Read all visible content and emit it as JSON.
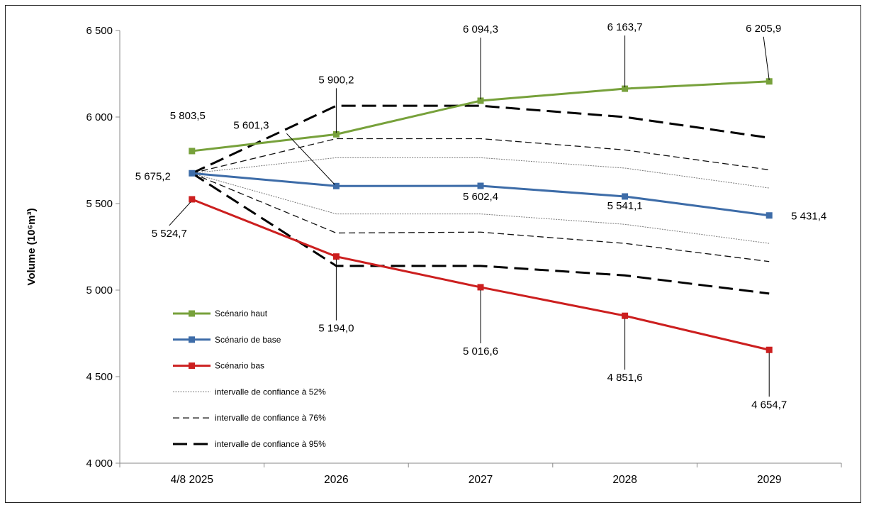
{
  "chart_data": {
    "type": "line",
    "title": "",
    "xlabel": "",
    "ylabel": "Volume (10⁶m³)",
    "categories": [
      "4/8 2025",
      "2026",
      "2027",
      "2028",
      "2029"
    ],
    "ylim": [
      4000,
      6500
    ],
    "yticks": [
      4000,
      4500,
      5000,
      5500,
      6000,
      6500
    ],
    "ytick_labels": [
      "4 000",
      "4 500",
      "5 000",
      "5 500",
      "6 000",
      "6 500"
    ],
    "grid": false,
    "legend_placement": "bottom-left",
    "series": [
      {
        "name": "Scénario haut",
        "color": "#77a13b",
        "style": "solid-marker",
        "values": [
          5803.5,
          5900.2,
          6094.3,
          6163.7,
          6205.9
        ],
        "labels": [
          "5 803,5",
          "5 900,2",
          "6 094,3",
          "6 163,7",
          "6 205,9"
        ]
      },
      {
        "name": "Scénario de base",
        "color": "#3d6ca8",
        "style": "solid-marker",
        "values": [
          5675.2,
          5601.3,
          5602.4,
          5541.1,
          5431.4
        ],
        "labels": [
          "5 675,2",
          "5 601,3",
          "5 602,4",
          "5 541,1",
          "5 431,4"
        ]
      },
      {
        "name": "Scénario bas",
        "color": "#cc1f1f",
        "style": "solid-marker",
        "values": [
          5524.7,
          5194.0,
          5016.6,
          4851.6,
          4654.7
        ],
        "labels": [
          "5 524,7",
          "5 194,0",
          "5 016,6",
          "4 851,6",
          "4 654,7"
        ]
      }
    ],
    "intervals": [
      {
        "name": "intervalle de confiance à 52%",
        "style": "dotted",
        "upper": [
          5675.2,
          5765,
          5765,
          5705,
          5590
        ],
        "lower": [
          5675.2,
          5440,
          5440,
          5380,
          5270
        ]
      },
      {
        "name": "intervalle de confiance à 76%",
        "style": "dashed",
        "upper": [
          5675.2,
          5875,
          5875,
          5810,
          5695
        ],
        "lower": [
          5675.2,
          5330,
          5335,
          5270,
          5165
        ]
      },
      {
        "name": "intervalle de confiance à 95%",
        "style": "long-dashed",
        "upper": [
          5675.2,
          6065,
          6065,
          6000,
          5880
        ],
        "lower": [
          5675.2,
          5140,
          5140,
          5085,
          4980
        ]
      }
    ]
  }
}
